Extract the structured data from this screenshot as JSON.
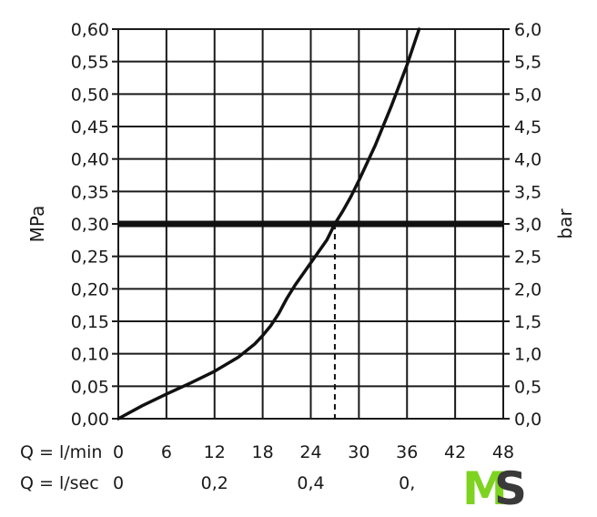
{
  "chart_data": {
    "type": "line",
    "ylabel": "MPa",
    "ylabel_right": "bar",
    "x_axis_flow_label": "Q = l/min",
    "x_axis_sec_label": "Q = l/sec",
    "xlim": [
      0,
      48
    ],
    "ylim": [
      0,
      0.6
    ],
    "ylim_right": [
      0,
      6
    ],
    "grid": true,
    "x_ticks": [
      "0",
      "6",
      "12",
      "18",
      "24",
      "30",
      "36",
      "42",
      "48"
    ],
    "x_ticks_values": [
      0,
      6,
      12,
      18,
      24,
      30,
      36,
      42,
      48
    ],
    "sec_ticks": [
      "0",
      "0,2",
      "0,4",
      "0,"
    ],
    "sec_ticks_values": [
      0,
      12,
      24,
      36
    ],
    "y_ticks_left": [
      "0,00",
      "0,05",
      "0,10",
      "0,15",
      "0,20",
      "0,25",
      "0,30",
      "0,35",
      "0,40",
      "0,45",
      "0,50",
      "0,55",
      "0,60"
    ],
    "y_ticks_right": [
      "0,0",
      "0,5",
      "1,0",
      "1,5",
      "2,0",
      "2,5",
      "3,0",
      "3,5",
      "4,0",
      "4,5",
      "5,0",
      "5,5",
      "6,0"
    ],
    "y_ticks_values": [
      0,
      0.05,
      0.1,
      0.15,
      0.2,
      0.25,
      0.3,
      0.35,
      0.4,
      0.45,
      0.5,
      0.55,
      0.6
    ],
    "series": [
      {
        "x": [
          0,
          3,
          6,
          9,
          12,
          15,
          17,
          18,
          19,
          20,
          21,
          22,
          24,
          26,
          27,
          28,
          29,
          30,
          32,
          34,
          36,
          37.5
        ],
        "y": [
          0,
          0.02,
          0.038,
          0.055,
          0.073,
          0.095,
          0.115,
          0.128,
          0.143,
          0.162,
          0.185,
          0.205,
          0.24,
          0.275,
          0.3,
          0.32,
          0.342,
          0.367,
          0.42,
          0.48,
          0.545,
          0.6
        ]
      }
    ],
    "reference_line": {
      "y": 0.3,
      "x_intersect": 27
    }
  },
  "logo": {
    "text_m": "M",
    "text_s": "S",
    "color_m": "#7ed321",
    "color_s": "#3a3a3a"
  }
}
